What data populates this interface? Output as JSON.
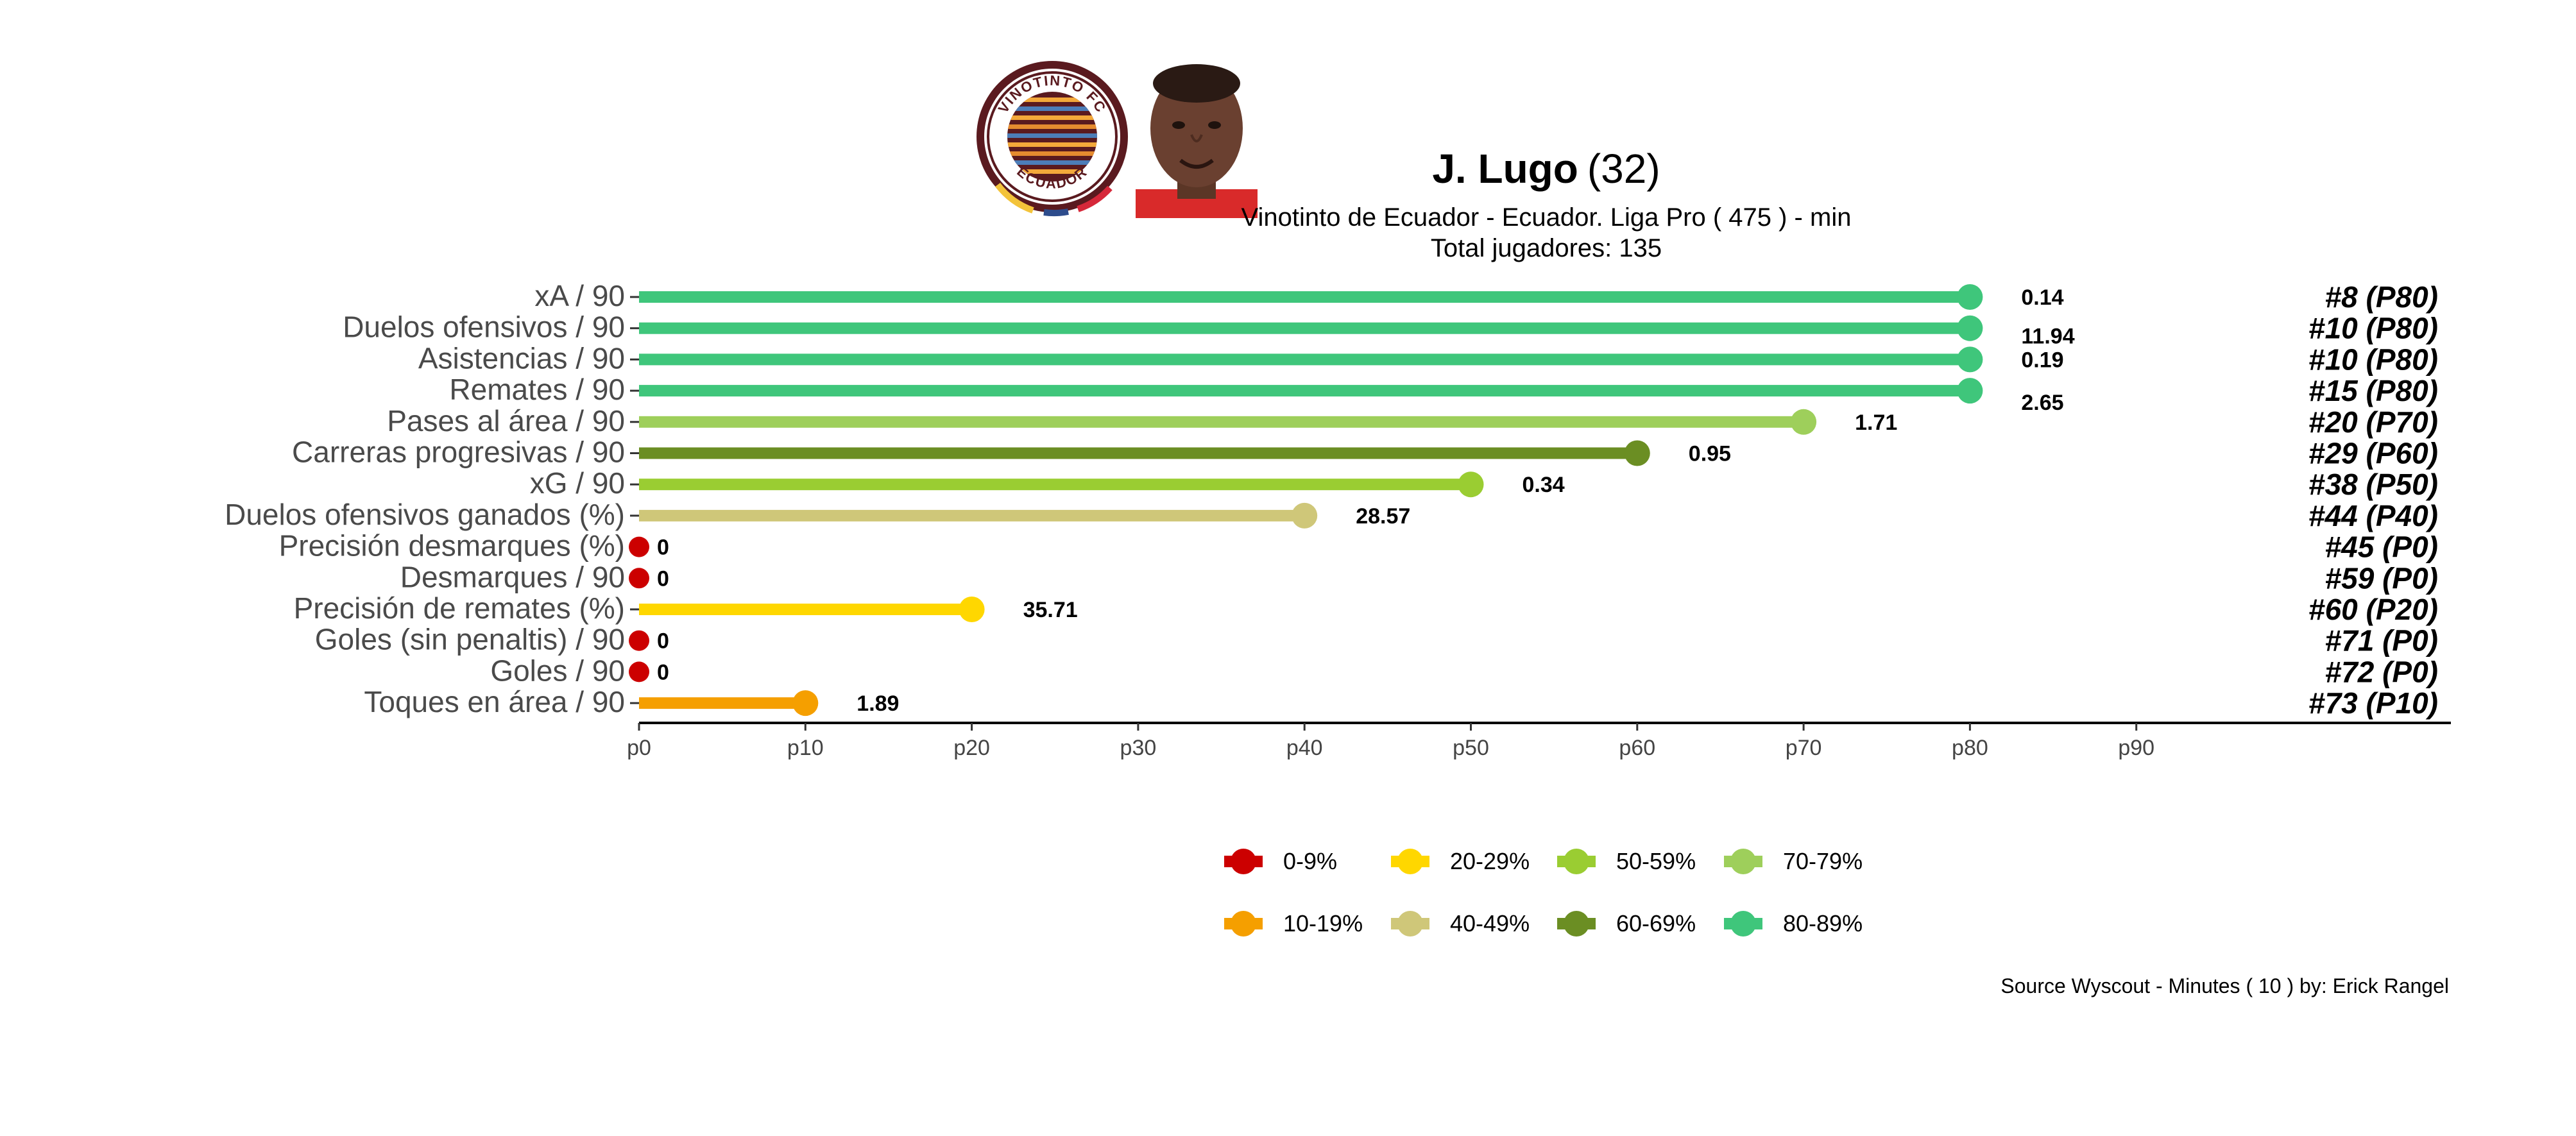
{
  "header": {
    "player_name": "J. Lugo",
    "player_age": "(32)",
    "subtitle": "Vinotinto de Ecuador  -  Ecuador. Liga Pro  ( 475 ) - min",
    "total_players": "Total jugadores:  135",
    "logo_top_text": "VINOTINTO FC",
    "logo_bottom_text": "ECUADOR"
  },
  "footer": {
    "source": "Source Wyscout - Minutes ( 10 ) by: Erick Rangel"
  },
  "colors": {
    "p0": "#cc0000",
    "p10": "#f59f00",
    "p20": "#ffd700",
    "p40": "#cfc779",
    "p50": "#9acd32",
    "p60": "#6b8e23",
    "p70": "#9ecf5b",
    "p80": "#3fc67b",
    "axis": "#000000",
    "tick_text": "#444444",
    "label_text": "#4a4a4a",
    "logo_maroon": "#5a1a1f"
  },
  "chart_data": {
    "type": "lollipop",
    "x_axis": {
      "ticks": [
        "p0",
        "p10",
        "p20",
        "p30",
        "p40",
        "p50",
        "p60",
        "p70",
        "p80",
        "p90"
      ],
      "range": [
        0,
        90
      ]
    },
    "metrics": [
      {
        "label": "xA / 90",
        "percentile": 80,
        "value": "0.14",
        "rank": "#8 (P80)",
        "color_key": "p80"
      },
      {
        "label": "Duelos ofensivos / 90",
        "percentile": 80,
        "value": "11.94",
        "rank": "#10 (P80)",
        "color_key": "p80"
      },
      {
        "label": "Asistencias / 90",
        "percentile": 80,
        "value": "0.19",
        "rank": "#10 (P80)",
        "color_key": "p80"
      },
      {
        "label": "Remates / 90",
        "percentile": 80,
        "value": "2.65",
        "rank": "#15 (P80)",
        "color_key": "p80"
      },
      {
        "label": "Pases al área / 90",
        "percentile": 70,
        "value": "1.71",
        "rank": "#20 (P70)",
        "color_key": "p70"
      },
      {
        "label": "Carreras progresivas / 90",
        "percentile": 60,
        "value": "0.95",
        "rank": "#29 (P60)",
        "color_key": "p60"
      },
      {
        "label": "xG / 90",
        "percentile": 50,
        "value": "0.34",
        "rank": "#38 (P50)",
        "color_key": "p50"
      },
      {
        "label": "Duelos ofensivos ganados (%)",
        "percentile": 40,
        "value": "28.57",
        "rank": "#44 (P40)",
        "color_key": "p40"
      },
      {
        "label": "Precisión desmarques (%)",
        "percentile": 0,
        "value": "0",
        "rank": "#45 (P0)",
        "color_key": "p0"
      },
      {
        "label": "Desmarques / 90",
        "percentile": 0,
        "value": "0",
        "rank": "#59 (P0)",
        "color_key": "p0"
      },
      {
        "label": "Precisión de remates (%)",
        "percentile": 20,
        "value": "35.71",
        "rank": "#60 (P20)",
        "color_key": "p20"
      },
      {
        "label": "Goles (sin penaltis) / 90",
        "percentile": 0,
        "value": "0",
        "rank": "#71 (P0)",
        "color_key": "p0"
      },
      {
        "label": "Goles / 90",
        "percentile": 0,
        "value": "0",
        "rank": "#72 (P0)",
        "color_key": "p0"
      },
      {
        "label": "Toques en área / 90",
        "percentile": 10,
        "value": "1.89",
        "rank": "#73 (P10)",
        "color_key": "p10"
      }
    ],
    "legend": [
      {
        "label": "0-9%",
        "color_key": "p0"
      },
      {
        "label": "20-29%",
        "color_key": "p20"
      },
      {
        "label": "50-59%",
        "color_key": "p50"
      },
      {
        "label": "70-79%",
        "color_key": "p70"
      },
      {
        "label": "10-19%",
        "color_key": "p10"
      },
      {
        "label": "40-49%",
        "color_key": "p40"
      },
      {
        "label": "60-69%",
        "color_key": "p60"
      },
      {
        "label": "80-89%",
        "color_key": "p80"
      }
    ]
  }
}
